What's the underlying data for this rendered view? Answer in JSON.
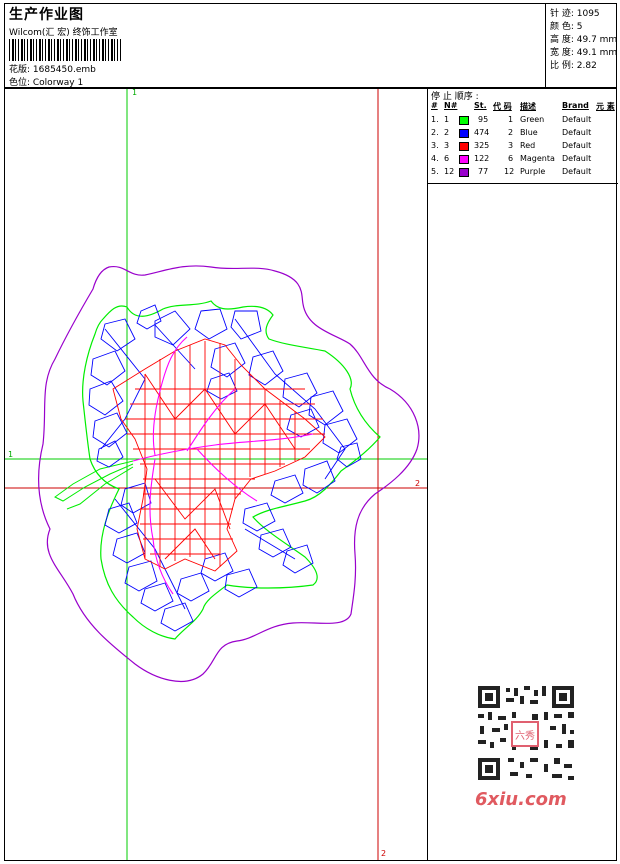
{
  "header": {
    "title": "生产作业图",
    "studio": "Wilcom(汇 宏) 终饰工作室",
    "design_label": "花版: 1685450.emb",
    "colorway_label": "色位: Colorway 1",
    "stats": [
      "针 迹: 1095",
      "颜 色: 5",
      "高 度: 49.7 mm",
      "宽 度: 49.1 mm",
      "比 例: 2.82"
    ]
  },
  "stop_list": {
    "title": "停 止 顺序 :",
    "columns": [
      "#",
      "N#",
      "St.",
      "代 码",
      "描述",
      "Brand",
      "元 素"
    ],
    "rows": [
      {
        "idx": "1.",
        "n": "1",
        "color": "#00ff00",
        "st": "95",
        "code": "1",
        "desc": "Green",
        "brand": "Default"
      },
      {
        "idx": "2.",
        "n": "2",
        "color": "#0000ff",
        "st": "474",
        "code": "2",
        "desc": "Blue",
        "brand": "Default"
      },
      {
        "idx": "3.",
        "n": "3",
        "color": "#ff0000",
        "st": "325",
        "code": "3",
        "desc": "Red",
        "brand": "Default"
      },
      {
        "idx": "4.",
        "n": "6",
        "color": "#ff00ff",
        "st": "122",
        "code": "6",
        "desc": "Magenta",
        "brand": "Default"
      },
      {
        "idx": "5.",
        "n": "12",
        "color": "#9900cc",
        "st": "77",
        "code": "12",
        "desc": "Purple",
        "brand": "Default"
      }
    ]
  },
  "canvas": {
    "guide_green_v_label": "1",
    "guide_green_h_label": "1",
    "guide_red_v_label": "2",
    "guide_red_h_label": "2"
  },
  "watermark": {
    "site": "6xiu.com",
    "logo_text": "六秀"
  },
  "colors": {
    "green": "#00ff00",
    "blue": "#0000ff",
    "red": "#ff0000",
    "magenta": "#ff00ff",
    "purple": "#9900cc"
  }
}
